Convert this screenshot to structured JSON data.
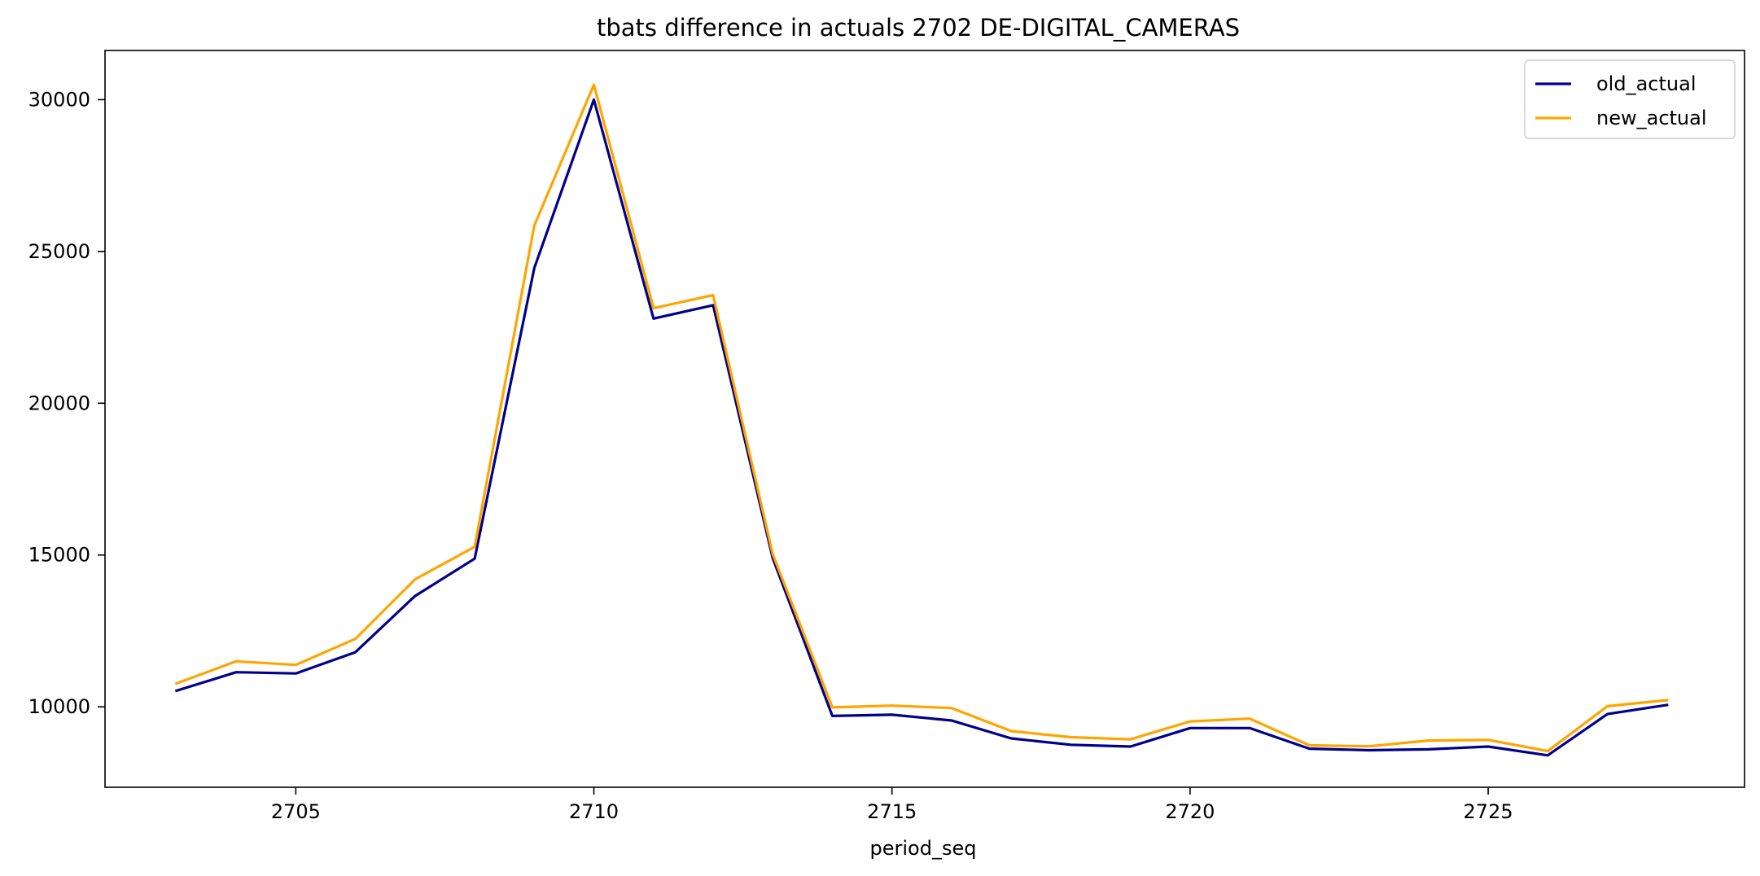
{
  "chart_data": {
    "type": "line",
    "title": "tbats difference in actuals 2702 DE-DIGITAL_CAMERAS",
    "xlabel": "period_seq",
    "ylabel": "",
    "x": [
      2703,
      2704,
      2705,
      2706,
      2707,
      2708,
      2709,
      2710,
      2711,
      2712,
      2713,
      2714,
      2715,
      2716,
      2717,
      2718,
      2719,
      2720,
      2721,
      2722,
      2723,
      2724,
      2725,
      2726,
      2727,
      2728
    ],
    "series": [
      {
        "name": "old_actual",
        "color": "#00008b",
        "values": [
          10530,
          11140,
          11100,
          11800,
          13650,
          14880,
          24450,
          30000,
          22790,
          23230,
          14900,
          9700,
          9740,
          9550,
          8960,
          8750,
          8690,
          9300,
          9300,
          8620,
          8570,
          8600,
          8690,
          8400,
          9760,
          10060
        ]
      },
      {
        "name": "new_actual",
        "color": "#ffa500",
        "values": [
          10770,
          11500,
          11380,
          12240,
          14200,
          15270,
          25850,
          30490,
          23130,
          23560,
          15030,
          9980,
          10040,
          9960,
          9200,
          9000,
          8930,
          9520,
          9610,
          8730,
          8700,
          8890,
          8910,
          8540,
          10020,
          10220
        ]
      }
    ],
    "xlim": [
      2701.8,
      2729.3
    ],
    "ylim": [
      7350,
      31620
    ],
    "xticks": [
      2705,
      2710,
      2715,
      2720,
      2725
    ],
    "yticks": [
      10000,
      15000,
      20000,
      25000,
      30000
    ],
    "grid": false,
    "legend_position": "upper right"
  }
}
